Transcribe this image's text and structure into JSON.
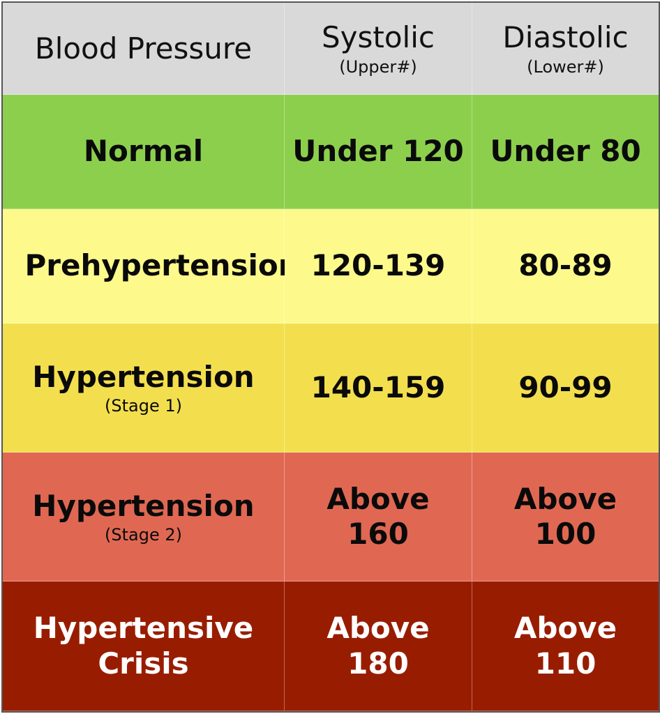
{
  "table": {
    "header": {
      "color": "#d9d9d9",
      "text_color": "#111111",
      "cells": [
        {
          "text": "Blood Pressure"
        },
        {
          "text": "Systolic",
          "note": "(Upper#)"
        },
        {
          "text": "Diastolic",
          "note": "(Lower#)"
        }
      ]
    },
    "rows": [
      {
        "color": "#8ccf4d",
        "text_color": "#0a0a0a",
        "cells": [
          {
            "text": "Normal"
          },
          {
            "text": "Under 120"
          },
          {
            "text": "Under 80"
          }
        ]
      },
      {
        "color": "#fdfa8b",
        "text_color": "#0a0a0a",
        "cells": [
          {
            "text": "Prehypertension"
          },
          {
            "text": "120-139"
          },
          {
            "text": "80-89"
          }
        ]
      },
      {
        "color": "#f3df4e",
        "text_color": "#0a0a0a",
        "cells": [
          {
            "text": "Hypertension",
            "note": "(Stage 1)"
          },
          {
            "text": "140-159"
          },
          {
            "text": "90-99"
          }
        ]
      },
      {
        "color": "#e06853",
        "text_color": "#0a0a0a",
        "cells": [
          {
            "text": "Hypertension",
            "note": "(Stage 2)"
          },
          {
            "text": "Above 160"
          },
          {
            "text": "Above 100"
          }
        ]
      },
      {
        "color": "#981d00",
        "text_color": "#ffffff",
        "cells": [
          {
            "text": "Hypertensive Crisis"
          },
          {
            "text": "Above 180"
          },
          {
            "text": "Above 110"
          }
        ]
      }
    ]
  }
}
